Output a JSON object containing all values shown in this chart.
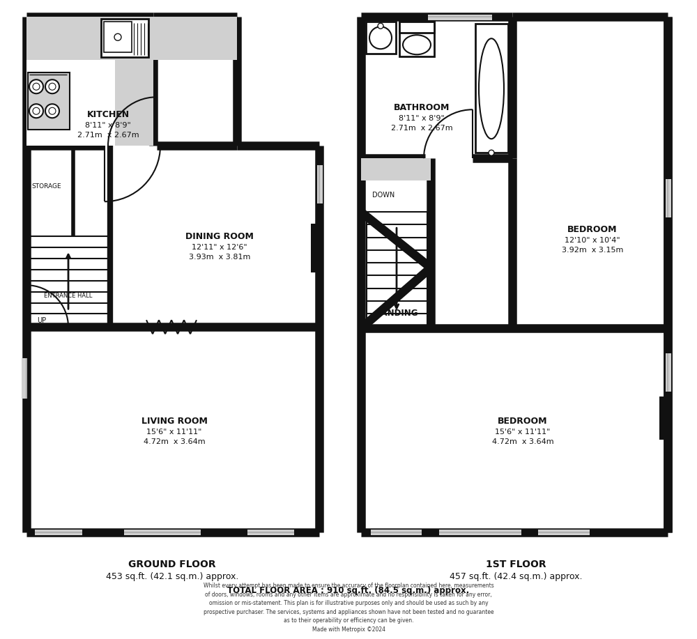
{
  "bg_color": "#ffffff",
  "wall_color": "#111111",
  "light_gray": "#d0d0d0",
  "mid_gray": "#b0b0b0",
  "ground_floor_label": "GROUND FLOOR\n453 sq.ft. (42.1 sq.m.) approx.",
  "first_floor_label": "1ST FLOOR\n457 sq.ft. (42.4 sq.m.) approx.",
  "total_area": "TOTAL FLOOR AREA : 910 sq.ft. (84.5 sq.m.) approx.",
  "disclaimer": "Whilst every attempt has been made to ensure the accuracy of the floorplan contained here, measurements\nof doors, windows, rooms and any other items are approximate and no responsibility is taken for any error,\nomission or mis-statement. This plan is for illustrative purposes only and should be used as such by any\nprospective purchaser. The services, systems and appliances shown have not been tested and no guarantee\nas to their operability or efficiency can be given.\nMade with Metropix ©2024",
  "kitchen_label": "KITCHEN\n8'11\" x 8'9\"\n2.71m  x 2.67m",
  "dining_label": "DINING ROOM\n12'11\" x 12'6\"\n3.93m  x 3.81m",
  "living_label": "LIVING ROOM\n15'6\" x 11'11\"\n4.72m  x 3.64m",
  "bathroom_label": "BATHROOM\n8'11\" x 8'9\"\n2.71m  x 2.67m",
  "bedroom1_label": "BEDROOM\n12'10\" x 10'4\"\n3.92m  x 3.15m",
  "bedroom2_label": "BEDROOM\n15'6\" x 11'11\"\n4.72m  x 3.64m",
  "landing_label": "LANDING",
  "storage_label": "STORAGE",
  "entrance_label": "ENTRANCE HALL",
  "up_label": "UP",
  "down_label": "DOWN"
}
